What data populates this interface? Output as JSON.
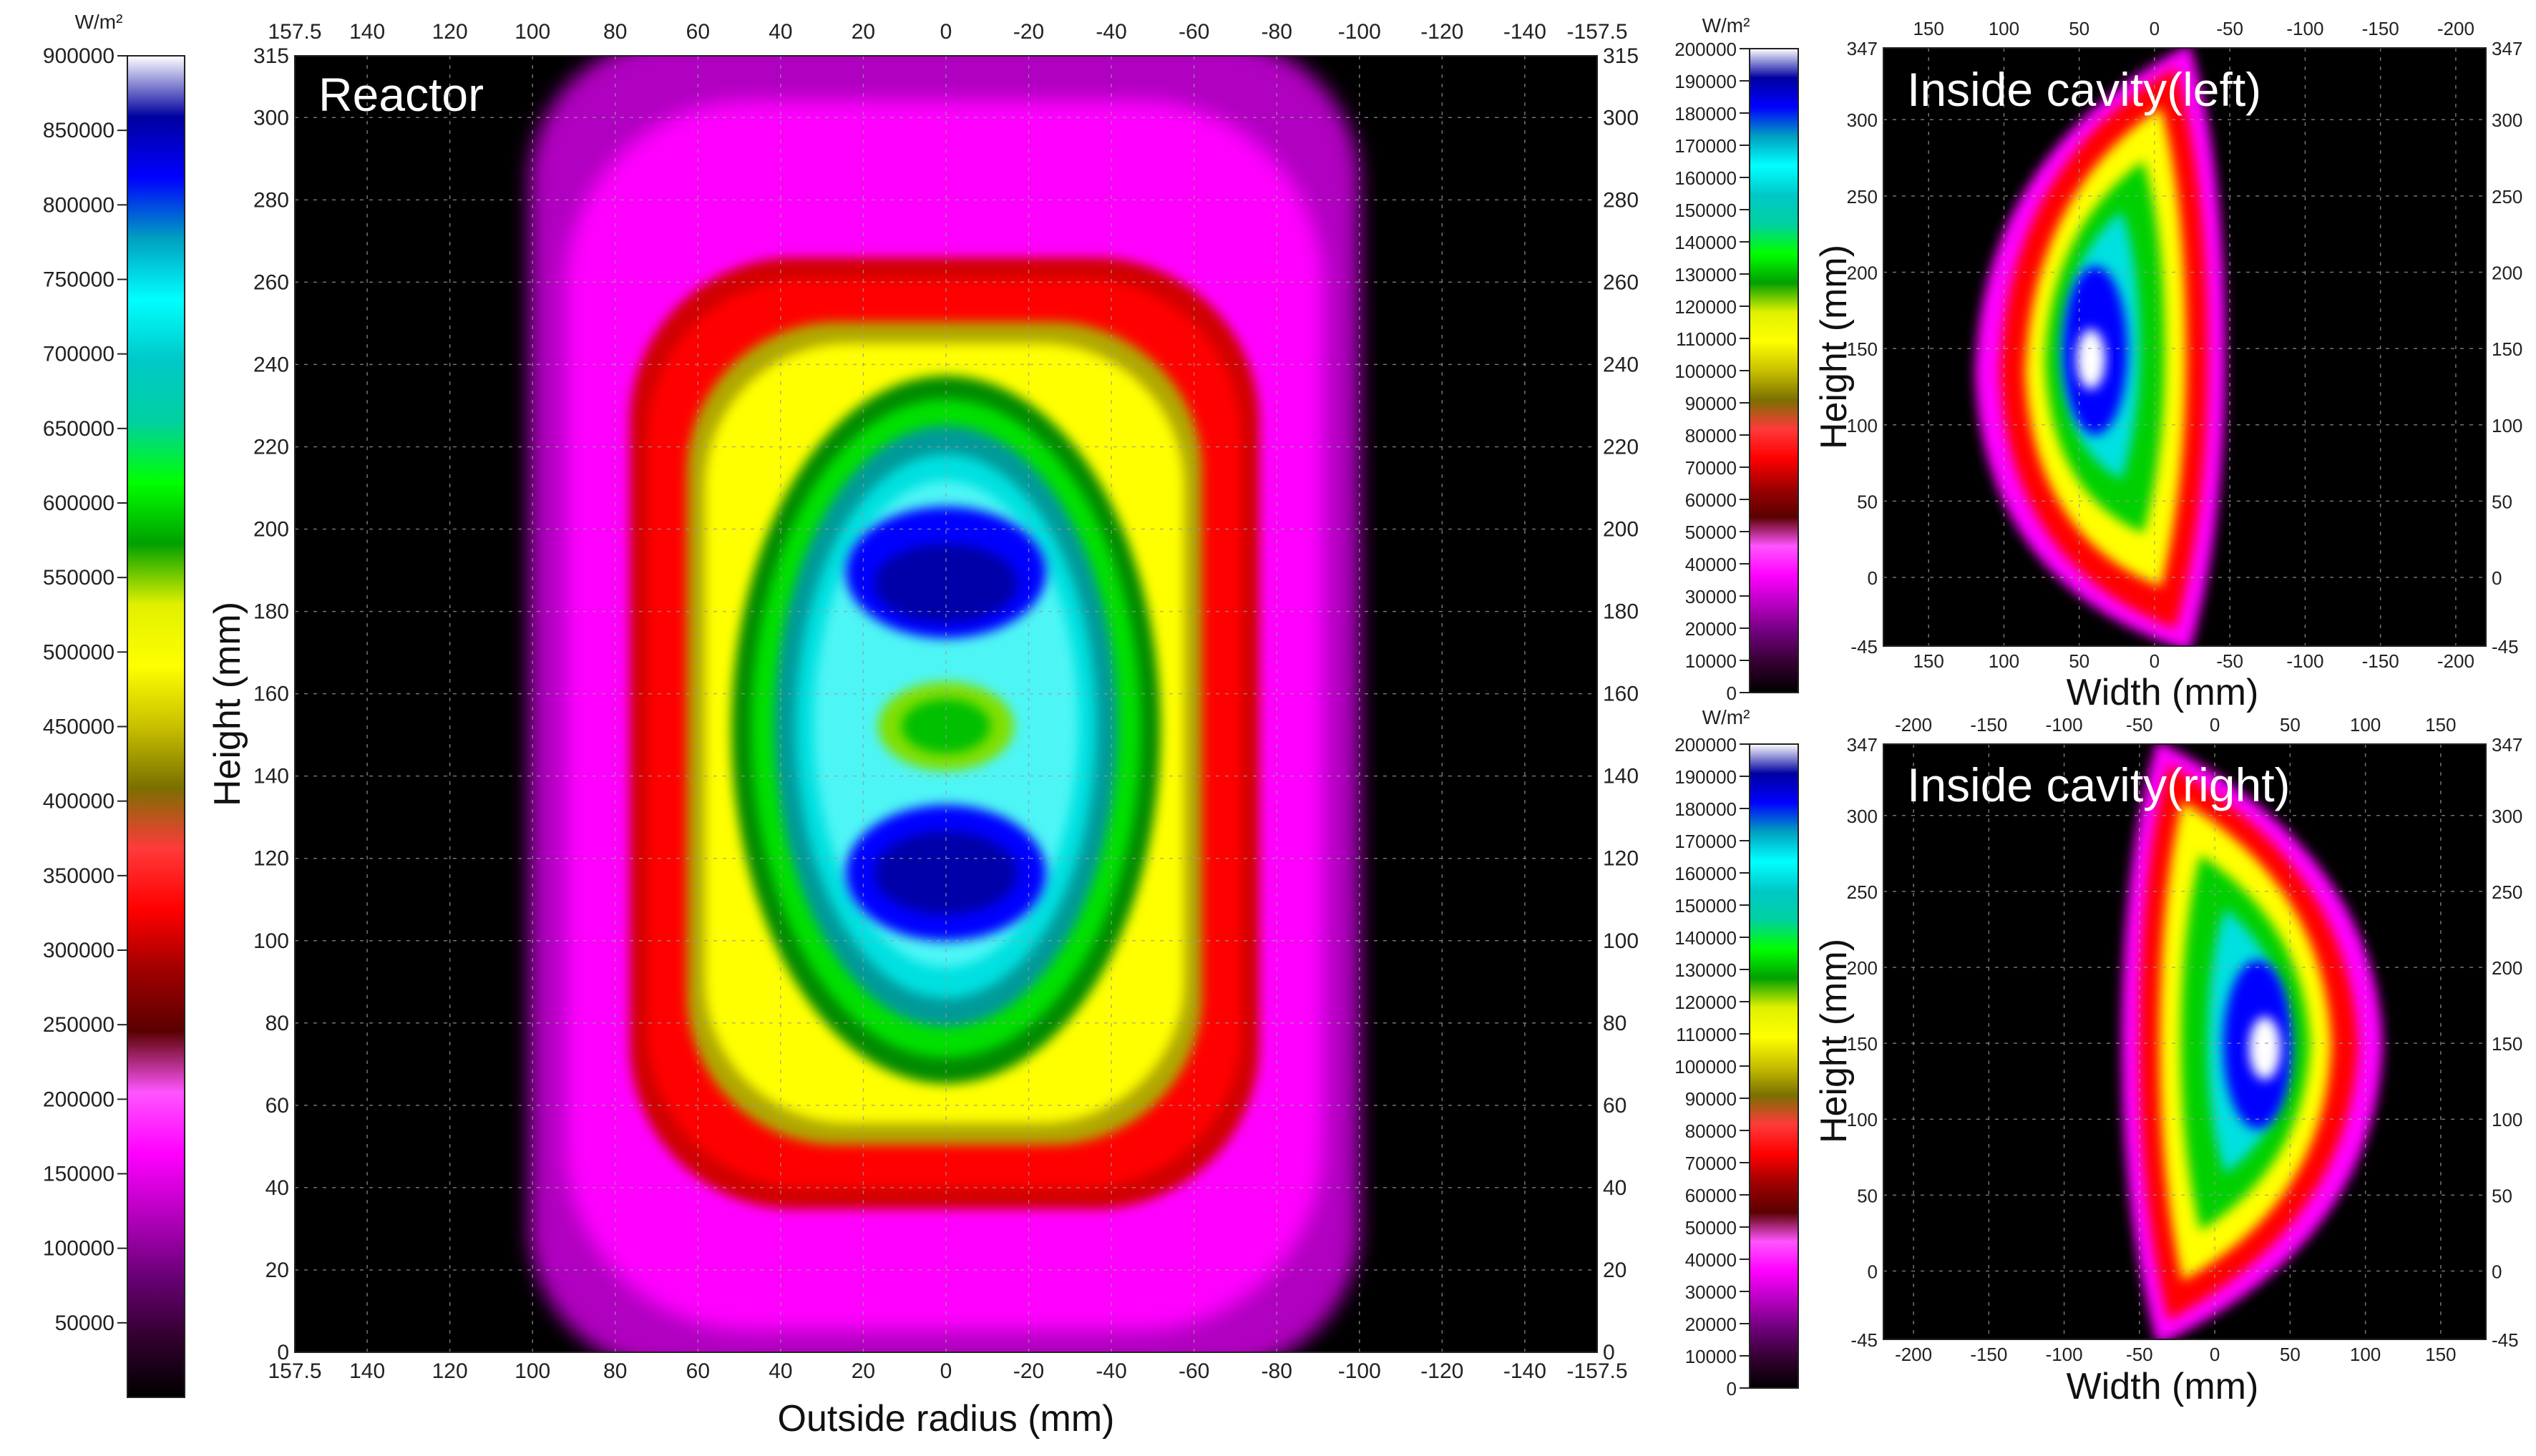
{
  "chart_data": [
    {
      "type": "heatmap",
      "id": "reactor",
      "title": "Reactor",
      "xlabel": "Outside radius (mm)",
      "ylabel": "Height (mm)",
      "x_ticks": [
        "157.5",
        "140",
        "120",
        "100",
        "80",
        "60",
        "40",
        "20",
        "0",
        "-20",
        "-40",
        "-60",
        "-80",
        "-100",
        "-120",
        "-140",
        "-157.5"
      ],
      "x_tick_values": [
        157.5,
        140,
        120,
        100,
        80,
        60,
        40,
        20,
        0,
        -20,
        -40,
        -60,
        -80,
        -100,
        -120,
        -140,
        -157.5
      ],
      "y_ticks": [
        "0",
        "20",
        "40",
        "60",
        "80",
        "100",
        "120",
        "140",
        "160",
        "180",
        "200",
        "220",
        "240",
        "260",
        "280",
        "300",
        "315"
      ],
      "y_tick_values": [
        0,
        20,
        40,
        60,
        80,
        100,
        120,
        140,
        160,
        180,
        200,
        220,
        240,
        260,
        280,
        300,
        315
      ],
      "xlim": [
        157.5,
        -157.5
      ],
      "ylim": [
        0,
        315
      ],
      "grid": true,
      "colorbar": {
        "unit": "W/m²",
        "min": 0,
        "max": 900000,
        "ticks": [
          "50000",
          "100000",
          "150000",
          "200000",
          "250000",
          "300000",
          "350000",
          "400000",
          "450000",
          "500000",
          "550000",
          "600000",
          "650000",
          "700000",
          "750000",
          "800000",
          "850000",
          "900000"
        ],
        "tick_values": [
          50000,
          100000,
          150000,
          200000,
          250000,
          300000,
          350000,
          400000,
          450000,
          500000,
          550000,
          600000,
          650000,
          700000,
          750000,
          800000,
          850000,
          900000
        ]
      },
      "features": [
        {
          "shape": "core-ellipse",
          "cx_mm": 0,
          "cy_mm": 150,
          "half_width_mm": 72,
          "half_height_mm": 92,
          "peak_wm2": 820000
        },
        {
          "shape": "blue-lobe",
          "cx_mm": 0,
          "cy_mm": 188,
          "peak_wm2": 820000
        },
        {
          "shape": "blue-lobe",
          "cx_mm": 0,
          "cy_mm": 108,
          "peak_wm2": 820000
        },
        {
          "shape": "green-center",
          "cx_mm": 0,
          "cy_mm": 150,
          "value_wm2": 520000
        }
      ]
    },
    {
      "type": "heatmap",
      "id": "cavity-left",
      "title": "Inside cavity(left)",
      "xlabel": "Width (mm)",
      "ylabel": "Height (mm)",
      "x_ticks": [
        "150",
        "100",
        "50",
        "0",
        "-50",
        "-100",
        "-150",
        "-200"
      ],
      "x_tick_values": [
        150,
        100,
        50,
        0,
        -50,
        -100,
        -150,
        -200
      ],
      "y_ticks": [
        "-45",
        "0",
        "50",
        "100",
        "150",
        "200",
        "250",
        "300",
        "347"
      ],
      "y_tick_values": [
        -45,
        0,
        50,
        100,
        150,
        200,
        250,
        300,
        347
      ],
      "xlim": [
        180,
        -220
      ],
      "ylim": [
        -45,
        347
      ],
      "grid": true,
      "colorbar": {
        "unit": "W/m²",
        "min": 0,
        "max": 200000,
        "ticks": [
          "0",
          "10000",
          "20000",
          "30000",
          "40000",
          "50000",
          "60000",
          "70000",
          "80000",
          "90000",
          "100000",
          "110000",
          "120000",
          "130000",
          "140000",
          "150000",
          "160000",
          "170000",
          "180000",
          "190000",
          "200000"
        ],
        "tick_values": [
          0,
          10000,
          20000,
          30000,
          40000,
          50000,
          60000,
          70000,
          80000,
          90000,
          100000,
          110000,
          120000,
          130000,
          140000,
          150000,
          160000,
          170000,
          180000,
          190000,
          200000
        ]
      },
      "features": [
        {
          "shape": "half-lens",
          "flat_edge_x_mm": 0,
          "curved_extent_x_mm": 100,
          "y_range_mm": [
            -40,
            340
          ],
          "peak_x_mm": 50,
          "peak_y_mm": 145,
          "peak_wm2": 200000
        }
      ]
    },
    {
      "type": "heatmap",
      "id": "cavity-right",
      "title": "Inside cavity(right)",
      "xlabel": "Width (mm)",
      "ylabel": "Height (mm)",
      "x_ticks": [
        "-200",
        "-150",
        "-100",
        "-50",
        "0",
        "50",
        "100",
        "150"
      ],
      "x_tick_values": [
        -200,
        -150,
        -100,
        -50,
        0,
        50,
        100,
        150
      ],
      "y_ticks": [
        "-45",
        "0",
        "50",
        "100",
        "150",
        "200",
        "250",
        "300",
        "347"
      ],
      "y_tick_values": [
        -45,
        0,
        50,
        100,
        150,
        200,
        250,
        300,
        347
      ],
      "xlim": [
        -220,
        180
      ],
      "ylim": [
        -45,
        347
      ],
      "grid": true,
      "colorbar": {
        "unit": "W/m²",
        "min": 0,
        "max": 200000,
        "ticks": [
          "0",
          "10000",
          "20000",
          "30000",
          "40000",
          "50000",
          "60000",
          "70000",
          "80000",
          "90000",
          "100000",
          "110000",
          "120000",
          "130000",
          "140000",
          "150000",
          "160000",
          "170000",
          "180000",
          "190000",
          "200000"
        ],
        "tick_values": [
          0,
          10000,
          20000,
          30000,
          40000,
          50000,
          60000,
          70000,
          80000,
          90000,
          100000,
          110000,
          120000,
          130000,
          140000,
          150000,
          160000,
          170000,
          180000,
          190000,
          200000
        ]
      },
      "features": [
        {
          "shape": "half-lens",
          "flat_edge_x_mm": -10,
          "curved_extent_x_mm": 100,
          "y_range_mm": [
            -40,
            340
          ],
          "peak_x_mm": 50,
          "peak_y_mm": 145,
          "peak_wm2": 200000
        }
      ]
    }
  ],
  "colormap": [
    "#000000",
    "#33002f",
    "#6b0078",
    "#b600c0",
    "#ff00ff",
    "#ff55ff",
    "#5a0000",
    "#a00000",
    "#ff0000",
    "#ff3a3a",
    "#7a7000",
    "#c8c000",
    "#ffff00",
    "#e0f000",
    "#00a000",
    "#00ff00",
    "#00d0a0",
    "#00c8c8",
    "#00ffff",
    "#00a0c0",
    "#0000ff",
    "#0000a0",
    "#ffffff"
  ]
}
